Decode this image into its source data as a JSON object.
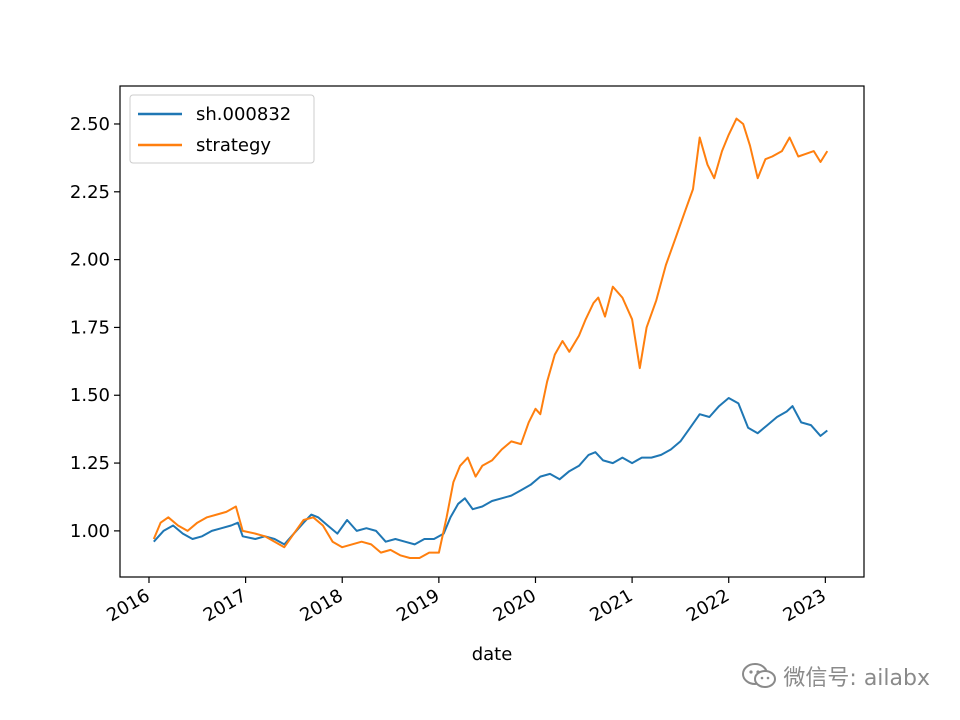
{
  "chart_data": {
    "type": "line",
    "xlabel": "date",
    "ylabel": "",
    "title": "",
    "xlim": [
      2015.7,
      2023.4
    ],
    "ylim": [
      0.83,
      2.64
    ],
    "x_ticks": [
      2016,
      2017,
      2018,
      2019,
      2020,
      2021,
      2022,
      2023
    ],
    "x_tick_labels": [
      "2016",
      "2017",
      "2018",
      "2019",
      "2020",
      "2021",
      "2022",
      "2023"
    ],
    "y_ticks": [
      1.0,
      1.25,
      1.5,
      1.75,
      2.0,
      2.25,
      2.5
    ],
    "y_tick_labels": [
      "1.00",
      "1.25",
      "1.50",
      "1.75",
      "2.00",
      "2.25",
      "2.50"
    ],
    "legend_position": "top-left",
    "grid": false,
    "series": [
      {
        "name": "sh.000832",
        "color": "#1f77b4",
        "points": [
          [
            2016.05,
            0.96
          ],
          [
            2016.15,
            1.0
          ],
          [
            2016.25,
            1.02
          ],
          [
            2016.35,
            0.99
          ],
          [
            2016.45,
            0.97
          ],
          [
            2016.55,
            0.98
          ],
          [
            2016.65,
            1.0
          ],
          [
            2016.75,
            1.01
          ],
          [
            2016.85,
            1.02
          ],
          [
            2016.92,
            1.03
          ],
          [
            2016.97,
            0.98
          ],
          [
            2017.1,
            0.97
          ],
          [
            2017.2,
            0.98
          ],
          [
            2017.3,
            0.97
          ],
          [
            2017.4,
            0.95
          ],
          [
            2017.5,
            0.99
          ],
          [
            2017.6,
            1.03
          ],
          [
            2017.68,
            1.06
          ],
          [
            2017.75,
            1.05
          ],
          [
            2017.85,
            1.02
          ],
          [
            2017.95,
            0.99
          ],
          [
            2018.05,
            1.04
          ],
          [
            2018.15,
            1.0
          ],
          [
            2018.25,
            1.01
          ],
          [
            2018.35,
            1.0
          ],
          [
            2018.45,
            0.96
          ],
          [
            2018.55,
            0.97
          ],
          [
            2018.65,
            0.96
          ],
          [
            2018.75,
            0.95
          ],
          [
            2018.85,
            0.97
          ],
          [
            2018.95,
            0.97
          ],
          [
            2019.05,
            0.99
          ],
          [
            2019.12,
            1.05
          ],
          [
            2019.2,
            1.1
          ],
          [
            2019.27,
            1.12
          ],
          [
            2019.35,
            1.08
          ],
          [
            2019.45,
            1.09
          ],
          [
            2019.55,
            1.11
          ],
          [
            2019.65,
            1.12
          ],
          [
            2019.75,
            1.13
          ],
          [
            2019.85,
            1.15
          ],
          [
            2019.95,
            1.17
          ],
          [
            2020.05,
            1.2
          ],
          [
            2020.15,
            1.21
          ],
          [
            2020.25,
            1.19
          ],
          [
            2020.35,
            1.22
          ],
          [
            2020.45,
            1.24
          ],
          [
            2020.55,
            1.28
          ],
          [
            2020.62,
            1.29
          ],
          [
            2020.7,
            1.26
          ],
          [
            2020.8,
            1.25
          ],
          [
            2020.9,
            1.27
          ],
          [
            2021.0,
            1.25
          ],
          [
            2021.1,
            1.27
          ],
          [
            2021.2,
            1.27
          ],
          [
            2021.3,
            1.28
          ],
          [
            2021.4,
            1.3
          ],
          [
            2021.5,
            1.33
          ],
          [
            2021.6,
            1.38
          ],
          [
            2021.7,
            1.43
          ],
          [
            2021.8,
            1.42
          ],
          [
            2021.9,
            1.46
          ],
          [
            2022.0,
            1.49
          ],
          [
            2022.1,
            1.47
          ],
          [
            2022.2,
            1.38
          ],
          [
            2022.3,
            1.36
          ],
          [
            2022.4,
            1.39
          ],
          [
            2022.5,
            1.42
          ],
          [
            2022.6,
            1.44
          ],
          [
            2022.66,
            1.46
          ],
          [
            2022.75,
            1.4
          ],
          [
            2022.85,
            1.39
          ],
          [
            2022.95,
            1.35
          ],
          [
            2023.02,
            1.37
          ]
        ]
      },
      {
        "name": "strategy",
        "color": "#ff7f0e",
        "points": [
          [
            2016.05,
            0.97
          ],
          [
            2016.12,
            1.03
          ],
          [
            2016.2,
            1.05
          ],
          [
            2016.3,
            1.02
          ],
          [
            2016.4,
            1.0
          ],
          [
            2016.5,
            1.03
          ],
          [
            2016.6,
            1.05
          ],
          [
            2016.7,
            1.06
          ],
          [
            2016.8,
            1.07
          ],
          [
            2016.9,
            1.09
          ],
          [
            2016.97,
            1.0
          ],
          [
            2017.1,
            0.99
          ],
          [
            2017.2,
            0.98
          ],
          [
            2017.3,
            0.96
          ],
          [
            2017.4,
            0.94
          ],
          [
            2017.5,
            0.99
          ],
          [
            2017.6,
            1.04
          ],
          [
            2017.7,
            1.05
          ],
          [
            2017.8,
            1.02
          ],
          [
            2017.9,
            0.96
          ],
          [
            2018.0,
            0.94
          ],
          [
            2018.1,
            0.95
          ],
          [
            2018.2,
            0.96
          ],
          [
            2018.3,
            0.95
          ],
          [
            2018.4,
            0.92
          ],
          [
            2018.5,
            0.93
          ],
          [
            2018.6,
            0.91
          ],
          [
            2018.7,
            0.9
          ],
          [
            2018.8,
            0.9
          ],
          [
            2018.9,
            0.92
          ],
          [
            2019.0,
            0.92
          ],
          [
            2019.08,
            1.05
          ],
          [
            2019.15,
            1.18
          ],
          [
            2019.22,
            1.24
          ],
          [
            2019.3,
            1.27
          ],
          [
            2019.38,
            1.2
          ],
          [
            2019.45,
            1.24
          ],
          [
            2019.55,
            1.26
          ],
          [
            2019.65,
            1.3
          ],
          [
            2019.75,
            1.33
          ],
          [
            2019.85,
            1.32
          ],
          [
            2019.93,
            1.4
          ],
          [
            2020.0,
            1.45
          ],
          [
            2020.05,
            1.43
          ],
          [
            2020.12,
            1.55
          ],
          [
            2020.2,
            1.65
          ],
          [
            2020.28,
            1.7
          ],
          [
            2020.35,
            1.66
          ],
          [
            2020.45,
            1.72
          ],
          [
            2020.52,
            1.78
          ],
          [
            2020.6,
            1.84
          ],
          [
            2020.65,
            1.86
          ],
          [
            2020.72,
            1.79
          ],
          [
            2020.8,
            1.9
          ],
          [
            2020.9,
            1.86
          ],
          [
            2021.0,
            1.78
          ],
          [
            2021.08,
            1.6
          ],
          [
            2021.15,
            1.75
          ],
          [
            2021.25,
            1.85
          ],
          [
            2021.35,
            1.98
          ],
          [
            2021.45,
            2.08
          ],
          [
            2021.55,
            2.18
          ],
          [
            2021.63,
            2.26
          ],
          [
            2021.7,
            2.45
          ],
          [
            2021.78,
            2.35
          ],
          [
            2021.85,
            2.3
          ],
          [
            2021.93,
            2.4
          ],
          [
            2022.0,
            2.46
          ],
          [
            2022.08,
            2.52
          ],
          [
            2022.15,
            2.5
          ],
          [
            2022.22,
            2.42
          ],
          [
            2022.3,
            2.3
          ],
          [
            2022.38,
            2.37
          ],
          [
            2022.45,
            2.38
          ],
          [
            2022.55,
            2.4
          ],
          [
            2022.63,
            2.45
          ],
          [
            2022.72,
            2.38
          ],
          [
            2022.8,
            2.39
          ],
          [
            2022.88,
            2.4
          ],
          [
            2022.95,
            2.36
          ],
          [
            2023.02,
            2.4
          ]
        ]
      }
    ]
  },
  "watermark": {
    "text": "微信号: ailabx",
    "icon": "wechat-icon"
  }
}
